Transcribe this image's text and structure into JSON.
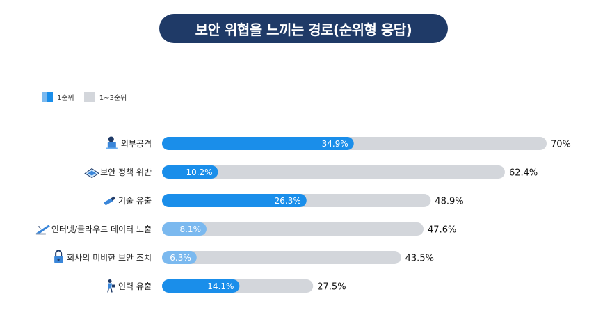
{
  "title": "보안 위협을 느끼는 경로(순위형 응답)",
  "legend": {
    "first": "1순위",
    "top3": "1~3순위"
  },
  "colors": {
    "title_bg": "#1f3a67",
    "first_strong": "#1a8eea",
    "first_light": "#7bb9ef",
    "top3": "#d3d6db"
  },
  "chart_data": {
    "type": "bar",
    "orientation": "horizontal",
    "categories": [
      "외부공격",
      "보안 정책 위반",
      "기술 유출",
      "인터넷/클라우드 데이터 노출",
      "회사의 미비한 보안 조치",
      "인력 유출"
    ],
    "icons": [
      "hacker-icon",
      "laptop-icon",
      "usb-icon",
      "airplane-icon",
      "padlock-icon",
      "person-icon"
    ],
    "series": [
      {
        "name": "1순위",
        "values": [
          34.9,
          10.2,
          26.3,
          8.1,
          6.3,
          14.1
        ],
        "labels": [
          "34.9%",
          "10.2%",
          "26.3%",
          "8.1%",
          "6.3%",
          "14.1%"
        ]
      },
      {
        "name": "1~3순위",
        "values": [
          70,
          62.4,
          48.9,
          47.6,
          43.5,
          27.5
        ],
        "labels": [
          "70%",
          "62.4%",
          "48.9%",
          "47.6%",
          "43.5%",
          "27.5%"
        ]
      }
    ],
    "xlim": [
      0,
      80
    ],
    "grid": false,
    "legend_position": "top-left"
  }
}
